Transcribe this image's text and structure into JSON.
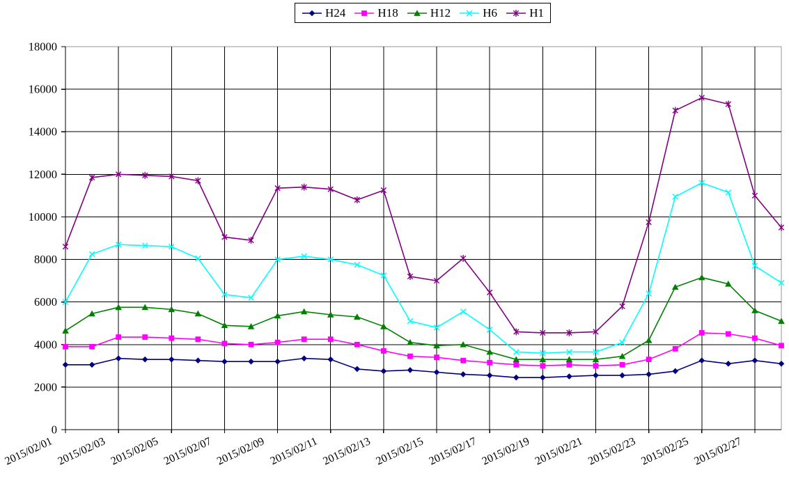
{
  "chart_data": {
    "type": "line",
    "title": "",
    "xlabel": "",
    "ylabel": "",
    "grid": true,
    "legend_position": "top-center",
    "plot_border_color": "#969696",
    "gridline_color": "#000000",
    "axis_color": "#000000",
    "y_axis": {
      "min": 0,
      "max": 18000,
      "step": 2000,
      "tick_labels": [
        "0",
        "2000",
        "4000",
        "6000",
        "8000",
        "10000",
        "12000",
        "14000",
        "16000",
        "18000"
      ]
    },
    "x_tick_step": 2,
    "x_tick_labels": [
      "2015/02/01",
      "2015/02/03",
      "2015/02/05",
      "2015/02/07",
      "2015/02/09",
      "2015/02/11",
      "2015/02/13",
      "2015/02/15",
      "2015/02/17",
      "2015/02/19",
      "2015/02/21",
      "2015/02/23",
      "2015/02/25",
      "2015/02/27"
    ],
    "x": [
      "2015/02/01",
      "2015/02/02",
      "2015/02/03",
      "2015/02/04",
      "2015/02/05",
      "2015/02/06",
      "2015/02/07",
      "2015/02/08",
      "2015/02/09",
      "2015/02/10",
      "2015/02/11",
      "2015/02/12",
      "2015/02/13",
      "2015/02/14",
      "2015/02/15",
      "2015/02/16",
      "2015/02/17",
      "2015/02/18",
      "2015/02/19",
      "2015/02/20",
      "2015/02/21",
      "2015/02/22",
      "2015/02/23",
      "2015/02/24",
      "2015/02/25",
      "2015/02/26",
      "2015/02/27",
      "2015/02/28"
    ],
    "series": [
      {
        "name": "H24",
        "color": "#000080",
        "marker": "diamond",
        "values": [
          3050,
          3050,
          3350,
          3300,
          3300,
          3250,
          3200,
          3200,
          3200,
          3350,
          3300,
          2850,
          2750,
          2800,
          2700,
          2600,
          2550,
          2450,
          2450,
          2500,
          2550,
          2550,
          2600,
          2750,
          3250,
          3100,
          3250,
          3100
        ]
      },
      {
        "name": "H18",
        "color": "#FF00FF",
        "marker": "square",
        "values": [
          3900,
          3900,
          4350,
          4350,
          4300,
          4250,
          4050,
          4000,
          4100,
          4250,
          4250,
          4000,
          3700,
          3450,
          3400,
          3250,
          3150,
          3050,
          3000,
          3050,
          3000,
          3050,
          3300,
          3800,
          4550,
          4500,
          4300,
          3950
        ]
      },
      {
        "name": "H12",
        "color": "#008000",
        "marker": "triangle",
        "values": [
          4650,
          5450,
          5750,
          5750,
          5650,
          5450,
          4900,
          4850,
          5350,
          5550,
          5400,
          5300,
          4850,
          4100,
          3950,
          4000,
          3650,
          3300,
          3300,
          3300,
          3300,
          3450,
          4200,
          6700,
          7150,
          6850,
          5600,
          5100
        ]
      },
      {
        "name": "H6",
        "color": "#00FFFF",
        "marker": "x",
        "values": [
          6000,
          8250,
          8700,
          8650,
          8600,
          8050,
          6350,
          6200,
          8000,
          8150,
          8000,
          7750,
          7250,
          5100,
          4800,
          5550,
          4700,
          3650,
          3600,
          3650,
          3650,
          4100,
          6400,
          10950,
          11600,
          11150,
          7700,
          6900
        ]
      },
      {
        "name": "H1",
        "color": "#800080",
        "marker": "asterisk",
        "values": [
          8600,
          11850,
          12000,
          11950,
          11900,
          11700,
          9050,
          8900,
          11350,
          11400,
          11300,
          10800,
          11250,
          7200,
          7000,
          8050,
          6450,
          4600,
          4550,
          4550,
          4600,
          5800,
          9750,
          15000,
          15600,
          15300,
          11000,
          9500
        ]
      }
    ]
  }
}
